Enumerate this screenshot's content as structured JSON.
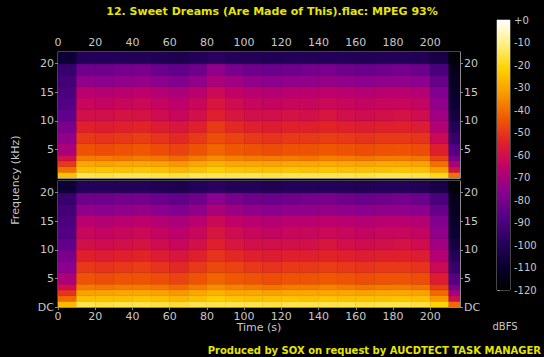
{
  "title": "12. Sweet Dreams (Are Made of This).flac: MPEG 93%",
  "x_label": "Time (s)",
  "y_label": "Frequency (kHz)",
  "footer": "Produced by SOX on request by AUCDTECT TASK MANAGER",
  "colorbar": {
    "label": "dBFS",
    "range": [
      -120,
      0
    ],
    "ticks": [
      {
        "value": 0,
        "label": "+0"
      },
      -10,
      -20,
      -30,
      -40,
      -50,
      -60,
      -70,
      -80,
      -90,
      -100,
      -110,
      -120
    ]
  },
  "chart_data": [
    {
      "type": "heatmap",
      "xlim": [
        0,
        216
      ],
      "xticks": [
        0,
        20,
        40,
        60,
        80,
        100,
        120,
        140,
        160,
        180,
        200
      ],
      "ylim": [
        0,
        22.05
      ],
      "yticks": [
        5,
        10,
        15,
        20
      ],
      "time_bins": [
        0,
        10,
        20,
        30,
        40,
        50,
        60,
        70,
        80,
        90,
        100,
        110,
        120,
        130,
        140,
        150,
        160,
        170,
        180,
        190,
        200,
        210,
        216
      ],
      "freq_bins": [
        0,
        1,
        2,
        3,
        4,
        6,
        8,
        10,
        12,
        14,
        16,
        18,
        20,
        22.05
      ],
      "cells": [
        [
          -25,
          -40,
          -50,
          -60,
          -70,
          -75,
          -80,
          -85,
          -88,
          -90,
          -92,
          -95,
          -108
        ],
        [
          -15,
          -25,
          -30,
          -38,
          -45,
          -50,
          -55,
          -60,
          -63,
          -67,
          -75,
          -82,
          -100
        ],
        [
          -16,
          -24,
          -31,
          -38,
          -46,
          -51,
          -56,
          -60,
          -64,
          -68,
          -76,
          -82,
          -100
        ],
        [
          -15,
          -25,
          -30,
          -39,
          -45,
          -50,
          -55,
          -59,
          -63,
          -67,
          -75,
          -81,
          -100
        ],
        [
          -15,
          -24,
          -30,
          -38,
          -44,
          -49,
          -54,
          -59,
          -62,
          -66,
          -74,
          -80,
          -100
        ],
        [
          -16,
          -25,
          -31,
          -39,
          -46,
          -51,
          -56,
          -61,
          -64,
          -68,
          -76,
          -83,
          -101
        ],
        [
          -17,
          -27,
          -33,
          -41,
          -48,
          -53,
          -58,
          -63,
          -66,
          -70,
          -78,
          -85,
          -102
        ],
        [
          -15,
          -25,
          -30,
          -38,
          -45,
          -50,
          -55,
          -60,
          -63,
          -67,
          -75,
          -82,
          -100
        ],
        [
          -15,
          -22,
          -28,
          -35,
          -42,
          -46,
          -50,
          -55,
          -58,
          -62,
          -70,
          -75,
          -98
        ],
        [
          -15,
          -24,
          -30,
          -37,
          -44,
          -48,
          -53,
          -58,
          -61,
          -65,
          -72,
          -80,
          -100
        ],
        [
          -15,
          -25,
          -30,
          -38,
          -45,
          -50,
          -55,
          -60,
          -63,
          -67,
          -75,
          -82,
          -100
        ],
        [
          -16,
          -25,
          -31,
          -38,
          -46,
          -51,
          -56,
          -60,
          -64,
          -68,
          -76,
          -83,
          -101
        ],
        [
          -15,
          -24,
          -30,
          -38,
          -45,
          -50,
          -55,
          -59,
          -63,
          -67,
          -75,
          -82,
          -100
        ],
        [
          -15,
          -25,
          -30,
          -39,
          -45,
          -50,
          -55,
          -60,
          -63,
          -67,
          -75,
          -81,
          -100
        ],
        [
          -15,
          -24,
          -29,
          -37,
          -44,
          -49,
          -54,
          -58,
          -62,
          -66,
          -74,
          -80,
          -100
        ],
        [
          -15,
          -25,
          -30,
          -38,
          -45,
          -50,
          -55,
          -60,
          -63,
          -67,
          -75,
          -82,
          -100
        ],
        [
          -16,
          -25,
          -31,
          -39,
          -46,
          -51,
          -56,
          -61,
          -64,
          -68,
          -76,
          -83,
          -101
        ],
        [
          -15,
          -25,
          -30,
          -38,
          -45,
          -50,
          -55,
          -60,
          -63,
          -67,
          -75,
          -82,
          -100
        ],
        [
          -15,
          -24,
          -30,
          -38,
          -45,
          -50,
          -55,
          -59,
          -63,
          -67,
          -75,
          -81,
          -100
        ],
        [
          -16,
          -25,
          -31,
          -39,
          -46,
          -51,
          -56,
          -61,
          -64,
          -68,
          -76,
          -83,
          -101
        ],
        [
          -20,
          -32,
          -40,
          -48,
          -55,
          -62,
          -68,
          -72,
          -75,
          -78,
          -84,
          -90,
          -104
        ],
        [
          -40,
          -60,
          -70,
          -80,
          -88,
          -95,
          -100,
          -105,
          -108,
          -110,
          -112,
          -114,
          -118
        ]
      ]
    },
    {
      "type": "heatmap",
      "xlim": [
        0,
        216
      ],
      "xticks": [
        0,
        20,
        40,
        60,
        80,
        100,
        120,
        140,
        160,
        180,
        200
      ],
      "ylim": [
        0,
        22.05
      ],
      "yticks": [
        {
          "value": 0,
          "label": "DC"
        },
        5,
        10,
        15,
        20
      ],
      "time_bins": [
        0,
        10,
        20,
        30,
        40,
        50,
        60,
        70,
        80,
        90,
        100,
        110,
        120,
        130,
        140,
        150,
        160,
        170,
        180,
        190,
        200,
        210,
        216
      ],
      "freq_bins": [
        0,
        1,
        2,
        3,
        4,
        6,
        8,
        10,
        12,
        14,
        16,
        18,
        20,
        22.05
      ],
      "cells": [
        [
          -26,
          -41,
          -51,
          -61,
          -70,
          -76,
          -80,
          -85,
          -88,
          -90,
          -92,
          -95,
          -108
        ],
        [
          -15,
          -25,
          -31,
          -38,
          -45,
          -50,
          -55,
          -60,
          -63,
          -67,
          -75,
          -82,
          -100
        ],
        [
          -16,
          -25,
          -31,
          -39,
          -46,
          -51,
          -56,
          -61,
          -64,
          -68,
          -76,
          -82,
          -100
        ],
        [
          -15,
          -25,
          -30,
          -38,
          -45,
          -50,
          -55,
          -60,
          -63,
          -67,
          -75,
          -81,
          -100
        ],
        [
          -15,
          -24,
          -30,
          -38,
          -45,
          -49,
          -54,
          -59,
          -62,
          -66,
          -74,
          -81,
          -100
        ],
        [
          -16,
          -25,
          -31,
          -39,
          -46,
          -51,
          -56,
          -61,
          -64,
          -68,
          -76,
          -83,
          -101
        ],
        [
          -17,
          -27,
          -33,
          -41,
          -48,
          -53,
          -58,
          -63,
          -66,
          -70,
          -78,
          -85,
          -102
        ],
        [
          -15,
          -25,
          -30,
          -38,
          -45,
          -50,
          -55,
          -60,
          -63,
          -67,
          -75,
          -82,
          -100
        ],
        [
          -15,
          -22,
          -28,
          -35,
          -42,
          -47,
          -51,
          -55,
          -58,
          -62,
          -70,
          -76,
          -98
        ],
        [
          -15,
          -24,
          -30,
          -37,
          -44,
          -48,
          -53,
          -58,
          -61,
          -65,
          -73,
          -80,
          -100
        ],
        [
          -15,
          -25,
          -30,
          -38,
          -45,
          -50,
          -55,
          -60,
          -63,
          -67,
          -75,
          -82,
          -100
        ],
        [
          -16,
          -25,
          -31,
          -39,
          -46,
          -51,
          -56,
          -60,
          -64,
          -68,
          -76,
          -83,
          -101
        ],
        [
          -15,
          -24,
          -30,
          -38,
          -45,
          -50,
          -55,
          -60,
          -63,
          -67,
          -75,
          -82,
          -100
        ],
        [
          -15,
          -25,
          -30,
          -38,
          -45,
          -50,
          -55,
          -60,
          -63,
          -67,
          -75,
          -81,
          -100
        ],
        [
          -15,
          -24,
          -30,
          -37,
          -44,
          -49,
          -54,
          -58,
          -62,
          -66,
          -74,
          -80,
          -100
        ],
        [
          -15,
          -25,
          -30,
          -38,
          -45,
          -50,
          -55,
          -60,
          -63,
          -67,
          -75,
          -82,
          -100
        ],
        [
          -16,
          -25,
          -31,
          -39,
          -46,
          -51,
          -56,
          -61,
          -64,
          -68,
          -76,
          -83,
          -101
        ],
        [
          -15,
          -25,
          -30,
          -38,
          -45,
          -50,
          -55,
          -60,
          -63,
          -67,
          -75,
          -82,
          -100
        ],
        [
          -15,
          -24,
          -30,
          -38,
          -45,
          -50,
          -55,
          -59,
          -63,
          -67,
          -75,
          -81,
          -100
        ],
        [
          -16,
          -25,
          -31,
          -39,
          -46,
          -51,
          -56,
          -61,
          -64,
          -68,
          -76,
          -83,
          -101
        ],
        [
          -21,
          -33,
          -41,
          -49,
          -56,
          -62,
          -68,
          -72,
          -75,
          -78,
          -84,
          -90,
          -104
        ],
        [
          -41,
          -61,
          -71,
          -80,
          -88,
          -95,
          -100,
          -105,
          -108,
          -110,
          -112,
          -114,
          -118
        ]
      ]
    }
  ]
}
